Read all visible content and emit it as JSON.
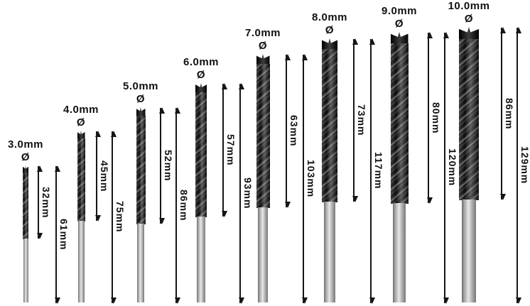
{
  "figure": "drill-bit-size-diagram",
  "symbols": {
    "diameter": "Ø"
  },
  "colors": {
    "background": "#ffffff",
    "text": "#111111",
    "arrow": "#161616",
    "flute_dark": "#0a0a0a",
    "flute_light": "#6a6a6a",
    "shank_light": "#e8e8e8",
    "shank_dark": "#6f6f6f"
  },
  "bits": [
    {
      "diameter": "3.0mm",
      "flute_length": "32mm",
      "total_length": "61mm"
    },
    {
      "diameter": "4.0mm",
      "flute_length": "45mm",
      "total_length": "75mm"
    },
    {
      "diameter": "5.0mm",
      "flute_length": "52mm",
      "total_length": "86mm"
    },
    {
      "diameter": "6.0mm",
      "flute_length": "57mm",
      "total_length": "93mm"
    },
    {
      "diameter": "7.0mm",
      "flute_length": "63mm",
      "total_length": "103mm"
    },
    {
      "diameter": "8.0mm",
      "flute_length": "73mm",
      "total_length": "117mm"
    },
    {
      "diameter": "9.0mm",
      "flute_length": "80mm",
      "total_length": "120mm"
    },
    {
      "diameter": "10.0mm",
      "flute_length": "86mm",
      "total_length": "129mm"
    }
  ]
}
